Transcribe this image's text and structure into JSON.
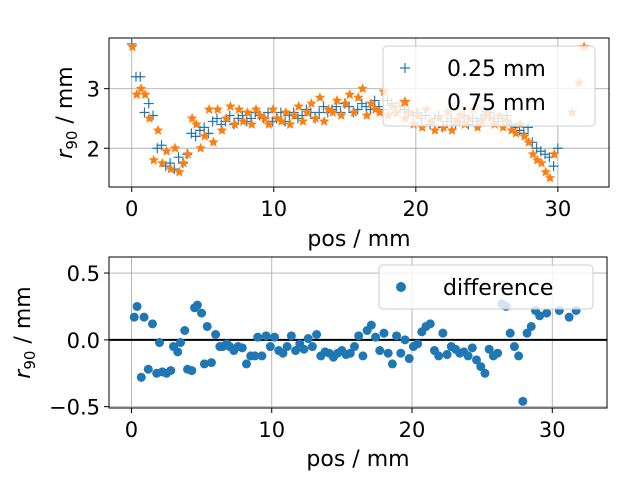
{
  "chart_data": [
    {
      "type": "scatter",
      "xlabel": "pos / mm",
      "ylabel_base": "r",
      "ylabel_sub": "90",
      "ylabel_tail": " / mm",
      "xlim": [
        -1.6,
        33.6
      ],
      "ylim": [
        1.35,
        3.85
      ],
      "xticks": [
        0,
        10,
        20,
        30
      ],
      "yticks": [
        2,
        3
      ],
      "grid": true,
      "legend_position": "upper right",
      "series": [
        {
          "name": "0.25 mm",
          "marker": "plus",
          "color": "#1f77b4",
          "x": [
            0.0,
            0.3,
            0.6,
            0.9,
            1.2,
            1.5,
            1.8,
            2.1,
            2.4,
            2.7,
            3.0,
            3.3,
            3.6,
            3.9,
            4.2,
            4.5,
            4.8,
            5.1,
            5.4,
            5.7,
            6.0,
            6.3,
            6.6,
            6.9,
            7.2,
            7.5,
            7.8,
            8.1,
            8.4,
            8.7,
            9.0,
            9.3,
            9.6,
            9.9,
            10.2,
            10.5,
            10.8,
            11.1,
            11.4,
            11.7,
            12.0,
            12.3,
            12.6,
            12.9,
            13.2,
            13.5,
            13.8,
            14.1,
            14.4,
            14.7,
            15.0,
            15.3,
            15.6,
            15.9,
            16.2,
            16.5,
            16.8,
            17.1,
            17.4,
            17.7,
            18.0,
            18.3,
            18.6,
            18.9,
            19.2,
            19.5,
            19.8,
            20.1,
            20.4,
            20.7,
            21.0,
            21.3,
            21.6,
            21.9,
            22.2,
            22.5,
            22.8,
            23.1,
            23.4,
            23.7,
            24.0,
            24.3,
            24.6,
            24.9,
            25.2,
            25.5,
            25.8,
            26.1,
            26.4,
            26.7,
            27.0,
            27.3,
            27.6,
            27.9,
            28.2,
            28.5,
            28.8,
            29.1,
            29.4,
            29.7,
            30.0
          ],
          "y": [
            3.75,
            3.2,
            3.2,
            2.6,
            2.75,
            2.55,
            2.0,
            2.05,
            1.7,
            1.75,
            1.65,
            1.85,
            1.75,
            1.9,
            2.25,
            2.2,
            2.3,
            2.35,
            2.25,
            2.45,
            2.5,
            2.4,
            2.45,
            2.55,
            2.4,
            2.5,
            2.55,
            2.45,
            2.5,
            2.6,
            2.55,
            2.5,
            2.6,
            2.45,
            2.5,
            2.6,
            2.45,
            2.55,
            2.6,
            2.5,
            2.55,
            2.65,
            2.6,
            2.5,
            2.6,
            2.7,
            2.6,
            2.65,
            2.7,
            2.6,
            2.75,
            2.7,
            2.6,
            2.65,
            2.75,
            2.7,
            2.65,
            2.8,
            2.7,
            2.65,
            2.8,
            2.75,
            2.6,
            2.7,
            2.65,
            2.6,
            2.55,
            2.6,
            2.5,
            2.55,
            2.4,
            2.5,
            2.55,
            2.35,
            2.45,
            2.5,
            2.4,
            2.45,
            2.55,
            2.4,
            2.5,
            2.45,
            2.5,
            2.55,
            2.6,
            2.5,
            2.45,
            2.5,
            2.55,
            2.4,
            2.35,
            2.3,
            2.25,
            2.35,
            2.1,
            2.0,
            1.95,
            1.9,
            1.85,
            1.7,
            2.0
          ]
        },
        {
          "name": "0.75 mm",
          "marker": "star",
          "color": "#ff7f0e",
          "x": [
            0.05,
            0.35,
            0.65,
            0.95,
            1.25,
            1.55,
            1.85,
            2.15,
            2.45,
            2.75,
            3.05,
            3.35,
            3.65,
            3.95,
            4.25,
            4.55,
            4.85,
            5.15,
            5.45,
            5.75,
            6.05,
            6.35,
            6.65,
            6.95,
            7.25,
            7.55,
            7.85,
            8.15,
            8.45,
            8.75,
            9.05,
            9.35,
            9.65,
            9.95,
            10.25,
            10.55,
            10.85,
            11.15,
            11.45,
            11.75,
            12.05,
            12.35,
            12.65,
            12.95,
            13.25,
            13.55,
            13.85,
            14.15,
            14.45,
            14.75,
            15.05,
            15.35,
            15.65,
            15.95,
            16.25,
            16.55,
            16.85,
            17.15,
            17.45,
            17.75,
            18.05,
            18.35,
            18.65,
            18.95,
            19.25,
            19.55,
            19.85,
            20.15,
            20.45,
            20.75,
            21.05,
            21.35,
            21.65,
            21.95,
            22.25,
            22.55,
            22.85,
            23.15,
            23.45,
            23.75,
            24.05,
            24.35,
            24.65,
            24.95,
            25.25,
            25.55,
            25.85,
            26.15,
            26.45,
            26.75,
            27.05,
            27.35,
            27.65,
            27.95,
            28.25,
            28.55,
            28.85,
            29.15,
            29.45,
            29.75,
            31.0,
            31.5,
            31.85
          ],
          "y": [
            3.7,
            2.9,
            3.0,
            2.9,
            2.5,
            1.8,
            2.3,
            1.75,
            1.95,
            1.65,
            2.0,
            1.6,
            1.75,
            1.9,
            2.5,
            2.4,
            2.0,
            2.2,
            2.65,
            2.1,
            2.65,
            2.3,
            2.5,
            2.7,
            2.4,
            2.65,
            2.45,
            2.6,
            2.4,
            2.65,
            2.55,
            2.5,
            2.4,
            2.65,
            2.5,
            2.45,
            2.6,
            2.4,
            2.55,
            2.7,
            2.45,
            2.6,
            2.75,
            2.5,
            2.85,
            2.45,
            2.65,
            2.6,
            2.8,
            2.55,
            2.75,
            2.9,
            2.6,
            2.85,
            3.0,
            2.55,
            2.75,
            2.65,
            2.6,
            2.95,
            2.55,
            2.7,
            2.6,
            2.75,
            2.5,
            2.6,
            2.4,
            2.55,
            2.35,
            2.65,
            2.45,
            2.3,
            2.5,
            2.35,
            2.6,
            2.3,
            2.45,
            2.55,
            2.4,
            2.5,
            2.65,
            2.35,
            2.45,
            2.6,
            2.5,
            2.4,
            2.55,
            2.35,
            2.45,
            2.3,
            2.25,
            2.4,
            2.2,
            2.1,
            1.9,
            1.8,
            1.75,
            1.6,
            1.5,
            1.9,
            2.6,
            3.1,
            3.7
          ]
        }
      ]
    },
    {
      "type": "scatter",
      "xlabel": "pos / mm",
      "ylabel_base": "r",
      "ylabel_sub": "90",
      "ylabel_tail": " / mm",
      "xlim": [
        -1.6,
        33.9
      ],
      "ylim": [
        -0.51,
        0.62
      ],
      "xticks": [
        0,
        10,
        20,
        30
      ],
      "yticks": [
        -0.5,
        0.0,
        0.5
      ],
      "ytick_labels": [
        "−0.5",
        "0.0",
        "0.5"
      ],
      "zero_line": true,
      "grid": true,
      "legend_position": "upper right",
      "series": [
        {
          "name": "difference",
          "marker": "circle",
          "color": "#1f77b4",
          "x": [
            0.2,
            0.4,
            0.7,
            0.9,
            1.2,
            1.5,
            1.8,
            2.0,
            2.2,
            2.5,
            2.8,
            3.0,
            3.3,
            3.5,
            3.8,
            4.0,
            4.3,
            4.5,
            4.7,
            5.0,
            5.2,
            5.4,
            5.7,
            6.0,
            6.3,
            6.5,
            6.8,
            7.0,
            7.3,
            7.6,
            7.9,
            8.2,
            8.5,
            8.8,
            9.0,
            9.3,
            9.6,
            9.9,
            10.2,
            10.5,
            10.8,
            11.1,
            11.4,
            11.7,
            12.0,
            12.3,
            12.6,
            12.9,
            13.2,
            13.5,
            13.8,
            14.1,
            14.4,
            14.7,
            15.0,
            15.3,
            15.6,
            15.9,
            16.2,
            16.5,
            16.8,
            17.1,
            17.4,
            17.7,
            18.0,
            18.3,
            18.6,
            18.9,
            19.2,
            19.5,
            19.8,
            20.1,
            20.4,
            20.7,
            21.0,
            21.3,
            21.6,
            21.9,
            22.2,
            22.5,
            22.8,
            23.1,
            23.4,
            23.7,
            24.0,
            24.3,
            24.6,
            24.9,
            25.2,
            25.5,
            25.8,
            26.1,
            26.4,
            26.7,
            27.0,
            27.3,
            27.6,
            27.9,
            28.2,
            28.5,
            28.8,
            29.1,
            29.6,
            30.5,
            31.2,
            31.7
          ],
          "y": [
            0.17,
            0.25,
            -0.28,
            0.17,
            -0.22,
            0.12,
            -0.25,
            -0.02,
            -0.24,
            -0.25,
            -0.23,
            -0.05,
            -0.09,
            -0.02,
            0.07,
            -0.22,
            -0.23,
            0.24,
            0.26,
            0.2,
            -0.18,
            0.1,
            -0.17,
            0.04,
            -0.05,
            -0.05,
            -0.03,
            -0.05,
            -0.08,
            -0.05,
            -0.06,
            -0.18,
            -0.12,
            -0.12,
            0.02,
            -0.12,
            0.03,
            -0.05,
            0.02,
            -0.08,
            -0.1,
            -0.05,
            0.03,
            -0.08,
            -0.03,
            -0.07,
            0.01,
            -0.05,
            0.04,
            -0.12,
            -0.09,
            -0.1,
            -0.13,
            -0.1,
            -0.08,
            -0.11,
            -0.1,
            -0.05,
            0.03,
            -0.12,
            0.07,
            0.11,
            0.02,
            -0.08,
            0.05,
            -0.1,
            -0.18,
            0.03,
            -0.1,
            0.0,
            -0.14,
            -0.05,
            -0.03,
            0.06,
            0.1,
            0.12,
            -0.08,
            -0.12,
            0.05,
            -0.11,
            -0.05,
            -0.07,
            -0.1,
            -0.09,
            -0.12,
            -0.06,
            -0.15,
            -0.2,
            -0.25,
            -0.07,
            -0.12,
            -0.1,
            0.27,
            0.25,
            0.05,
            -0.05,
            -0.12,
            -0.46,
            0.05,
            0.1,
            0.22,
            0.18,
            0.2,
            0.22,
            0.17,
            0.22
          ]
        }
      ]
    }
  ]
}
